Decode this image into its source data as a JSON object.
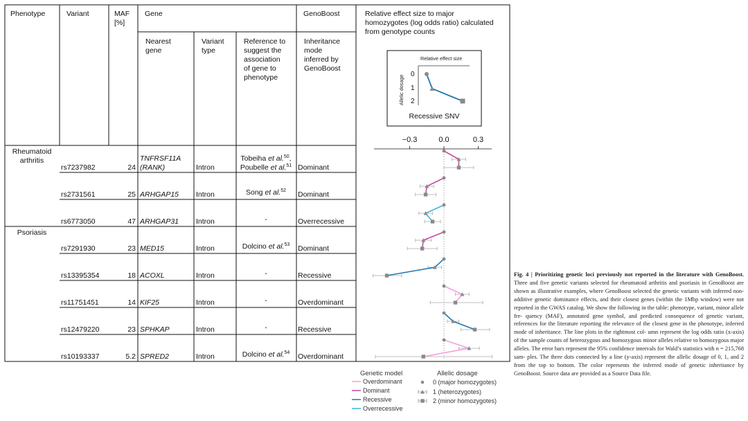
{
  "table": {
    "headers": {
      "phenotype": "Phenotype",
      "variant": "Variant",
      "maf": [
        "MAF",
        "[%]"
      ],
      "gene": "Gene",
      "genoboost": "GenoBoost",
      "effect": [
        "Relative effect size to major",
        "homozygotes (log odds ratio) calculated",
        "from genotype counts"
      ],
      "nearest": [
        "Nearest",
        "gene"
      ],
      "vtype": [
        "Variant",
        "type"
      ],
      "ref": [
        "Reference to",
        "suggest the",
        "association",
        "of gene to",
        "phenotype"
      ],
      "inherit": [
        "Inheritance",
        "mode",
        "inferred by",
        "GenoBoost"
      ]
    },
    "groups": [
      {
        "label": "Rheumatoid",
        "label2": "arthritis"
      },
      {
        "label": "Psoriasis",
        "label2": ""
      }
    ],
    "rows": [
      {
        "variant": "rs7237982",
        "maf": "24",
        "gene": "TNFRSF11A",
        "gene2": "(RANK)",
        "vtype": "Intron",
        "ref": "Tobeiha et al.",
        "ref_sup": "50",
        "ref_tail": ",",
        "ref2": "Poubelle et al.",
        "ref2_sup": "51",
        "mode": "Dominant"
      },
      {
        "variant": "rs2731561",
        "maf": "25",
        "gene": "ARHGAP15",
        "gene2": "",
        "vtype": "Intron",
        "ref": "Song et al.",
        "ref_sup": "52",
        "ref_tail": "",
        "ref2": "",
        "ref2_sup": "",
        "mode": "Dominant"
      },
      {
        "variant": "rs6773050",
        "maf": "47",
        "gene": "ARHGAP31",
        "gene2": "",
        "vtype": "Intron",
        "ref": "-",
        "ref_sup": "",
        "ref_tail": "",
        "ref2": "",
        "ref2_sup": "",
        "mode": "Overrecessive"
      },
      {
        "variant": "rs7291930",
        "maf": "23",
        "gene": "MED15",
        "gene2": "",
        "vtype": "Intron",
        "ref": "Dolcino et al.",
        "ref_sup": "53",
        "ref_tail": "",
        "ref2": "",
        "ref2_sup": "",
        "mode": "Dominant"
      },
      {
        "variant": "rs13395354",
        "maf": "18",
        "gene": "ACOXL",
        "gene2": "",
        "vtype": "Intron",
        "ref": "-",
        "ref_sup": "",
        "ref_tail": "",
        "ref2": "",
        "ref2_sup": "",
        "mode": "Recessive"
      },
      {
        "variant": "rs11751451",
        "maf": "14",
        "gene": "KIF25",
        "gene2": "",
        "vtype": "Intron",
        "ref": "-",
        "ref_sup": "",
        "ref_tail": "",
        "ref2": "",
        "ref2_sup": "",
        "mode": "Overdominant"
      },
      {
        "variant": "rs12479220",
        "maf": "23",
        "gene": "SPHKAP",
        "gene2": "",
        "vtype": "Intron",
        "ref": "-",
        "ref_sup": "",
        "ref_tail": "",
        "ref2": "",
        "ref2_sup": "",
        "mode": "Recessive"
      },
      {
        "variant": "rs10193337",
        "maf": "5.2",
        "gene": "SPRED2",
        "gene2": "",
        "vtype": "Intron",
        "ref": "Dolcino et al.",
        "ref_sup": "54",
        "ref_tail": "",
        "ref2": "",
        "ref2_sup": "",
        "mode": "Overdominant"
      }
    ]
  },
  "inset": {
    "title": "Relative effect size",
    "ylabel": "Allelic dosage",
    "ticks": [
      "0",
      "1",
      "2"
    ],
    "caption": "Recessive SNV",
    "values": [
      -0.3,
      -0.2,
      0.35
    ]
  },
  "legend": {
    "model_title": "Genetic model",
    "models": [
      {
        "name": "Overdominant",
        "color": "#f29fdc"
      },
      {
        "name": "Dominant",
        "color": "#c9499e"
      },
      {
        "name": "Recessive",
        "color": "#1f78b4"
      },
      {
        "name": "Overrecessive",
        "color": "#3cb4d6"
      }
    ],
    "dosage_title": "Allelic dosage",
    "dosages": [
      "0 (major homozygotes)",
      "1 (heterozygotes)",
      "2 (minor homozygotes)"
    ]
  },
  "chart_data": {
    "type": "line",
    "xlabel": "",
    "ylabel": "",
    "xlim": [
      -0.6,
      0.4
    ],
    "xticks": [
      -0.3,
      0.0,
      0.3
    ],
    "xtick_labels": [
      "−0.3",
      "0.0",
      "0.3"
    ],
    "reference_line": 0.0,
    "dosages": [
      0,
      1,
      2
    ],
    "series": [
      {
        "variant": "rs7237982",
        "model": "Dominant",
        "values": [
          0.0,
          0.13,
          0.13
        ],
        "ci": [
          [
            0.0,
            0.0
          ],
          [
            0.07,
            0.19
          ],
          [
            0.0,
            0.26
          ]
        ]
      },
      {
        "variant": "rs2731561",
        "model": "Dominant",
        "values": [
          0.0,
          -0.15,
          -0.16
        ],
        "ci": [
          [
            0.0,
            0.0
          ],
          [
            -0.21,
            -0.09
          ],
          [
            -0.25,
            -0.07
          ]
        ]
      },
      {
        "variant": "rs6773050",
        "model": "Overrecessive",
        "values": [
          0.0,
          -0.16,
          -0.1
        ],
        "ci": [
          [
            0.0,
            0.0
          ],
          [
            -0.22,
            -0.1
          ],
          [
            -0.17,
            -0.03
          ]
        ]
      },
      {
        "variant": "rs7291930",
        "model": "Dominant",
        "values": [
          0.0,
          -0.18,
          -0.19
        ],
        "ci": [
          [
            0.0,
            0.0
          ],
          [
            -0.25,
            -0.11
          ],
          [
            -0.32,
            -0.06
          ]
        ]
      },
      {
        "variant": "rs13395354",
        "model": "Recessive",
        "values": [
          0.0,
          -0.08,
          -0.5
        ],
        "ci": [
          [
            0.0,
            0.0
          ],
          [
            -0.14,
            -0.02
          ],
          [
            -0.62,
            -0.37
          ]
        ]
      },
      {
        "variant": "rs11751451",
        "model": "Overdominant",
        "values": [
          0.0,
          0.16,
          0.1
        ],
        "ci": [
          [
            0.0,
            0.0
          ],
          [
            0.1,
            0.22
          ],
          [
            -0.12,
            0.34
          ]
        ]
      },
      {
        "variant": "rs12479220",
        "model": "Recessive",
        "values": [
          0.0,
          0.08,
          0.27
        ],
        "ci": [
          [
            0.0,
            0.0
          ],
          [
            0.03,
            0.13
          ],
          [
            0.15,
            0.4
          ]
        ]
      },
      {
        "variant": "rs10193337",
        "model": "Overdominant",
        "values": [
          0.0,
          0.22,
          -0.18
        ],
        "ci": [
          [
            0.0,
            0.0
          ],
          [
            0.13,
            0.31
          ],
          [
            -0.6,
            0.42
          ]
        ]
      }
    ]
  },
  "caption": {
    "bold": "Fig. 4 | Prioritizing genetic loci previously not reported in the literature with GenoBoost.",
    "lines": [
      "Three and five genetic variants selected for rheumatoid arthritis and",
      "psoriasis in GenoBoost are shown as illustrative examples, where GenoBoost",
      "selected the genetic variants with inferred non-additive genetic dominance effects,",
      "and their closest genes (within the 1Mbp window) were not reported in the GWAS",
      "catalog. We show the following in the table: phenotype, variant, minor allele fre-",
      "quency (MAF), annotated gene symbol, and predicted consequence of genetic",
      "variant, references for the literature reporting the relevance of the closest gene in",
      "the phenotype, inferred mode of inheritance. The line plots in the rightmost col-",
      "umn represent the log odds ratio (x-axis) of the sample counts of heterozygous and",
      "homozygous minor alleles relative to homozygous major alleles. The error bars",
      "represent the 95% confidence intervals for Wald’s statistics with n = 215,768 sam-",
      "ples. The three dots connected by a line (y-axis) represent the allelic dosage of 0, 1,",
      "and 2 from the top to bottom. The color represents the inferred mode of genetic",
      "inheritance by GenoBoost. Source data are provided as a Source Data file."
    ]
  }
}
